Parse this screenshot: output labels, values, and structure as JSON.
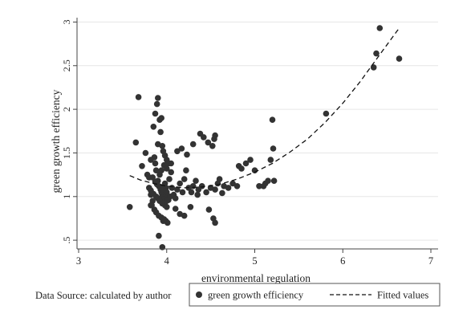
{
  "source_note": "Data Source: calculated by author",
  "chart_data": {
    "type": "scatter",
    "xlabel": "environmental regulation",
    "ylabel": "green growth efficiency",
    "xlim": [
      3,
      7
    ],
    "ylim": [
      0.4,
      3.05
    ],
    "x_ticks": [
      3,
      4,
      5,
      6,
      7
    ],
    "x_tick_labels": [
      "3",
      "4",
      "5",
      "6",
      "7"
    ],
    "y_ticks": [
      0.5,
      1,
      1.5,
      2,
      2.5,
      3
    ],
    "y_tick_labels": [
      ".5",
      "1",
      "1.5",
      "2",
      "2.5",
      "3"
    ],
    "grid": "horizontal",
    "legend_position": "bottom",
    "colors": {
      "points": "#333333",
      "fit_line": "#111111",
      "grid": "#e6e6e6",
      "axis": "#444444"
    },
    "series": [
      {
        "name": "green growth efficiency",
        "style": "points",
        "x": [
          3.58,
          3.68,
          3.65,
          3.72,
          3.78,
          3.8,
          3.82,
          3.84,
          3.86,
          3.87,
          3.88,
          3.9,
          3.91,
          3.93,
          3.94,
          3.95,
          3.96,
          3.97,
          3.98,
          3.99,
          4.0,
          4.01,
          4.02,
          4.03,
          4.05,
          3.85,
          3.87,
          3.89,
          3.9,
          3.92,
          3.93,
          3.95,
          3.96,
          3.98,
          4.0,
          4.02,
          3.83,
          3.86,
          3.88,
          3.91,
          3.94,
          3.97,
          3.99,
          4.01,
          3.8,
          3.82,
          3.85,
          3.88,
          3.9,
          3.92,
          3.95,
          3.98,
          4.0,
          3.84,
          3.87,
          3.89,
          3.93,
          3.96,
          3.99,
          4.04,
          3.92,
          3.94,
          3.97,
          4.0,
          3.91,
          3.95,
          4.06,
          4.08,
          4.1,
          4.12,
          4.15,
          4.18,
          4.2,
          4.22,
          4.25,
          4.28,
          4.3,
          4.33,
          4.36,
          4.4,
          4.45,
          4.5,
          4.55,
          4.58,
          4.6,
          4.65,
          4.7,
          4.75,
          4.8,
          4.82,
          4.85,
          4.9,
          4.95,
          5.0,
          5.05,
          5.12,
          5.18,
          4.12,
          4.17,
          4.23,
          4.3,
          4.38,
          4.42,
          4.47,
          4.52,
          4.54,
          4.55,
          4.1,
          4.15,
          4.2,
          4.27,
          4.35,
          4.48,
          4.53,
          4.55,
          4.63,
          5.2,
          5.21,
          5.15,
          5.22,
          5.1,
          5.81,
          6.35,
          6.38,
          6.42,
          6.64,
          3.82,
          3.96,
          4.0,
          4.05,
          3.76,
          3.82,
          3.9,
          3.94
        ],
        "y": [
          0.88,
          2.14,
          1.62,
          1.35,
          1.25,
          1.22,
          1.02,
          0.95,
          1.45,
          1.38,
          1.3,
          1.18,
          1.12,
          1.08,
          1.05,
          1.02,
          0.99,
          0.97,
          1.15,
          1.1,
          1.05,
          1.0,
          0.96,
          1.2,
          1.28,
          1.8,
          1.95,
          2.06,
          2.13,
          1.88,
          1.74,
          1.58,
          1.52,
          1.47,
          1.42,
          1.38,
          0.9,
          0.85,
          0.82,
          0.78,
          0.76,
          0.74,
          0.72,
          0.7,
          1.1,
          1.07,
          1.03,
          1.0,
          0.98,
          0.95,
          0.92,
          0.9,
          0.88,
          1.22,
          1.17,
          1.14,
          1.11,
          1.08,
          1.06,
          1.0,
          1.25,
          1.3,
          1.36,
          1.32,
          0.55,
          0.42,
          1.1,
          1.02,
          0.98,
          1.08,
          1.15,
          1.05,
          1.2,
          1.3,
          1.1,
          1.05,
          1.12,
          1.18,
          1.08,
          1.12,
          1.05,
          1.1,
          1.08,
          1.15,
          1.2,
          1.12,
          1.1,
          1.15,
          1.12,
          1.35,
          1.32,
          1.38,
          1.42,
          1.3,
          1.12,
          1.15,
          1.42,
          1.52,
          1.55,
          1.48,
          1.6,
          1.72,
          1.68,
          1.62,
          1.58,
          1.66,
          1.7,
          0.86,
          0.8,
          0.78,
          0.88,
          1.02,
          0.85,
          0.75,
          0.7,
          1.04,
          1.88,
          1.55,
          1.18,
          1.18,
          1.12,
          1.95,
          2.48,
          2.64,
          2.93,
          2.58,
          0.9,
          0.72,
          0.95,
          1.38,
          1.5,
          1.42,
          1.6,
          1.9
        ]
      },
      {
        "name": "Fitted values",
        "style": "dashed-line",
        "x": [
          3.58,
          3.7,
          3.85,
          4.0,
          4.2,
          4.4,
          4.6,
          4.8,
          5.0,
          5.2,
          5.4,
          5.6,
          5.8,
          6.0,
          6.2,
          6.4,
          6.64
        ],
        "y": [
          1.24,
          1.19,
          1.15,
          1.12,
          1.1,
          1.11,
          1.14,
          1.2,
          1.28,
          1.38,
          1.51,
          1.66,
          1.85,
          2.07,
          2.32,
          2.6,
          2.93
        ]
      }
    ]
  }
}
